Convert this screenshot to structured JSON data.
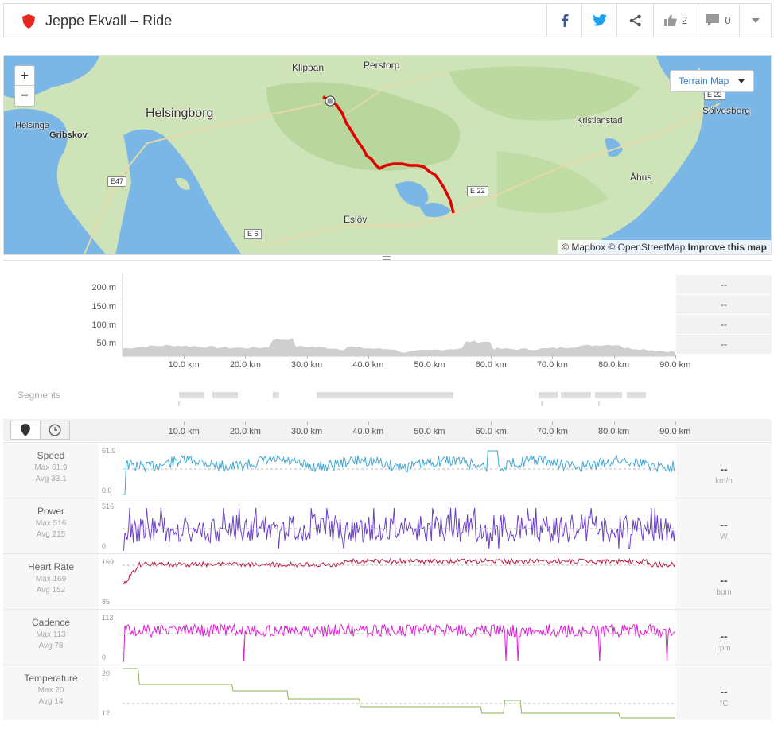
{
  "header": {
    "title": "Jeppe Ekvall – Ride",
    "kudos_count": "2",
    "comment_count": "0",
    "icons": [
      "shield-icon",
      "facebook-icon",
      "twitter-icon",
      "share-icon",
      "thumbs-up-icon",
      "comment-icon",
      "chevron-down-icon"
    ],
    "colors": {
      "brand": "#fc4c02",
      "facebook": "#3b5998",
      "twitter": "#1da1f2"
    }
  },
  "map": {
    "zoom_in": "+",
    "zoom_out": "−",
    "terrain_label": "Terrain Map",
    "attribution": "© Mapbox © OpenStreetMap",
    "attribution_link": "Improve this map",
    "places": [
      "Klippan",
      "Perstorp",
      "Helsingborg",
      "Helsinge",
      "Gribskov",
      "Kristianstad",
      "Sölvesborg",
      "Åhus",
      "Eslöv"
    ],
    "roads": [
      "E47",
      "E 22",
      "E 22",
      "E 6"
    ],
    "route_color": "#e00000"
  },
  "elevation": {
    "y_ticks": [
      "200 m",
      "150 m",
      "100 m",
      "50 m"
    ],
    "x_ticks": [
      "10.0 km",
      "20.0 km",
      "30.0 km",
      "40.0 km",
      "50.0 km",
      "60.0 km",
      "70.0 km",
      "80.0 km",
      "90.0 km"
    ],
    "side_values": [
      "--",
      "--",
      "--",
      "--"
    ]
  },
  "segments": {
    "label": "Segments"
  },
  "toolbar": {
    "x_ticks": [
      "10.0 km",
      "20.0 km",
      "30.0 km",
      "40.0 km",
      "50.0 km",
      "60.0 km",
      "70.0 km",
      "80.0 km",
      "90.0 km"
    ],
    "distance_icon": "map-pin-icon",
    "time_icon": "clock-icon"
  },
  "streams": [
    {
      "name": "Speed",
      "max": "Max 61.9",
      "avg": "Avg 33.1",
      "ymax": "61.9",
      "ymin": "0.0",
      "value": "--",
      "unit": "km/h",
      "color": "#3fa9d6"
    },
    {
      "name": "Power",
      "max": "Max 516",
      "avg": "Avg 215",
      "ymax": "516",
      "ymin": "0",
      "value": "--",
      "unit": "W",
      "color": "#6a3fc8"
    },
    {
      "name": "Heart Rate",
      "max": "Max 169",
      "avg": "Avg 152",
      "ymax": "169",
      "ymin": "85",
      "value": "--",
      "unit": "bpm",
      "color": "#c0113d"
    },
    {
      "name": "Cadence",
      "max": "Max 113",
      "avg": "Avg 78",
      "ymax": "113",
      "ymin": "0",
      "value": "--",
      "unit": "rpm",
      "color": "#e01bd8"
    },
    {
      "name": "Temperature",
      "max": "Max 20",
      "avg": "Avg 14",
      "ymax": "20",
      "ymin": "12",
      "value": "--",
      "unit": "°C",
      "color": "#8bb054"
    }
  ]
}
